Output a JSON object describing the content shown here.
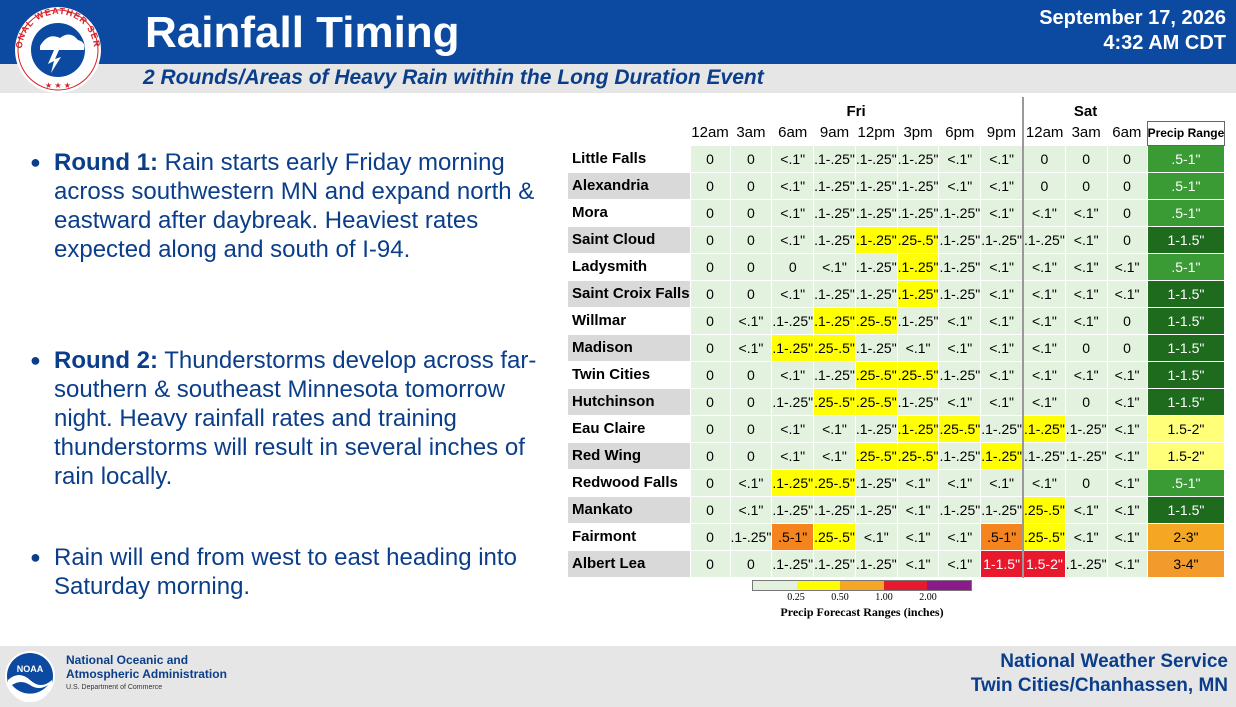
{
  "header": {
    "title": "Rainfall Timing",
    "date": "September 17, 2026",
    "time": "4:32 AM CDT",
    "subtitle": "2 Rounds/Areas of Heavy Rain within the Long Duration Event",
    "logo_text": "NATIONAL WEATHER SERVICE"
  },
  "bullets": [
    {
      "bold": "Round 1:",
      "text": " Rain starts early Friday morning across southwestern MN and expand north & eastward after daybreak. Heaviest rates expected along and south of I-94."
    },
    {
      "bold": "Round 2:",
      "text": " Thunderstorms develop across far-southern & southeast Minnesota tomorrow night. Heavy rainfall rates and training thunderstorms will result in several inches of rain locally."
    },
    {
      "bold": "",
      "text": "Rain will end from west to east heading into Saturday morning."
    }
  ],
  "table": {
    "days": [
      "Fri",
      "Sat"
    ],
    "times": [
      "12am",
      "3am",
      "6am",
      "9am",
      "12pm",
      "3pm",
      "6pm",
      "9pm",
      "12am",
      "3am",
      "6am"
    ],
    "range_header": "Precip Range",
    "rows": [
      {
        "city": "Little Falls",
        "vals": [
          "0",
          "0",
          "<.1\"",
          ".1-.25\"",
          ".1-.25\"",
          ".1-.25\"",
          "<.1\"",
          "<.1\"",
          "0",
          "0",
          "0"
        ],
        "colors": [
          "",
          "",
          "",
          "",
          "",
          "",
          "",
          "",
          "",
          "",
          ""
        ],
        "range": ".5-1\"",
        "rc": "g"
      },
      {
        "city": "Alexandria",
        "vals": [
          "0",
          "0",
          "<.1\"",
          ".1-.25\"",
          ".1-.25\"",
          ".1-.25\"",
          "<.1\"",
          "<.1\"",
          "0",
          "0",
          "0"
        ],
        "colors": [
          "",
          "",
          "",
          "",
          "",
          "",
          "",
          "",
          "",
          "",
          ""
        ],
        "range": ".5-1\"",
        "rc": "g"
      },
      {
        "city": "Mora",
        "vals": [
          "0",
          "0",
          "<.1\"",
          ".1-.25\"",
          ".1-.25\"",
          ".1-.25\"",
          ".1-.25\"",
          "<.1\"",
          "<.1\"",
          "<.1\"",
          "0"
        ],
        "colors": [
          "",
          "",
          "",
          "",
          "",
          "",
          "",
          "",
          "",
          "",
          ""
        ],
        "range": ".5-1\"",
        "rc": "g"
      },
      {
        "city": "Saint Cloud",
        "vals": [
          "0",
          "0",
          "<.1\"",
          ".1-.25\"",
          ".1-.25\"",
          ".25-.5\"",
          ".1-.25\"",
          ".1-.25\"",
          ".1-.25\"",
          "<.1\"",
          "0"
        ],
        "colors": [
          "",
          "",
          "",
          "",
          "y",
          "y",
          "",
          "",
          "",
          "",
          ""
        ],
        "range": "1-1.5\"",
        "rc": "dg"
      },
      {
        "city": "Ladysmith",
        "vals": [
          "0",
          "0",
          "0",
          "<.1\"",
          ".1-.25\"",
          ".1-.25\"",
          ".1-.25\"",
          "<.1\"",
          "<.1\"",
          "<.1\"",
          "<.1\""
        ],
        "colors": [
          "",
          "",
          "",
          "",
          "",
          "y",
          "",
          "",
          "",
          "",
          ""
        ],
        "range": ".5-1\"",
        "rc": "g"
      },
      {
        "city": "Saint Croix Falls",
        "vals": [
          "0",
          "0",
          "<.1\"",
          ".1-.25\"",
          ".1-.25\"",
          ".1-.25\"",
          ".1-.25\"",
          "<.1\"",
          "<.1\"",
          "<.1\"",
          "<.1\""
        ],
        "colors": [
          "",
          "",
          "",
          "",
          "",
          "y",
          "",
          "",
          "",
          "",
          ""
        ],
        "range": "1-1.5\"",
        "rc": "dg"
      },
      {
        "city": "Willmar",
        "vals": [
          "0",
          "<.1\"",
          ".1-.25\"",
          ".1-.25\"",
          ".25-.5\"",
          ".1-.25\"",
          "<.1\"",
          "<.1\"",
          "<.1\"",
          "<.1\"",
          "0"
        ],
        "colors": [
          "",
          "",
          "",
          "y",
          "y",
          "",
          "",
          "",
          "",
          "",
          ""
        ],
        "range": "1-1.5\"",
        "rc": "dg"
      },
      {
        "city": "Madison",
        "vals": [
          "0",
          "<.1\"",
          ".1-.25\"",
          ".25-.5\"",
          ".1-.25\"",
          "<.1\"",
          "<.1\"",
          "<.1\"",
          "<.1\"",
          "0",
          "0"
        ],
        "colors": [
          "",
          "",
          "y",
          "y",
          "",
          "",
          "",
          "",
          "",
          "",
          ""
        ],
        "range": "1-1.5\"",
        "rc": "dg"
      },
      {
        "city": "Twin Cities",
        "vals": [
          "0",
          "0",
          "<.1\"",
          ".1-.25\"",
          ".25-.5\"",
          ".25-.5\"",
          ".1-.25\"",
          "<.1\"",
          "<.1\"",
          "<.1\"",
          "<.1\""
        ],
        "colors": [
          "",
          "",
          "",
          "",
          "y",
          "y",
          "",
          "",
          "",
          "",
          ""
        ],
        "range": "1-1.5\"",
        "rc": "dg"
      },
      {
        "city": "Hutchinson",
        "vals": [
          "0",
          "0",
          ".1-.25\"",
          ".25-.5\"",
          ".25-.5\"",
          ".1-.25\"",
          "<.1\"",
          "<.1\"",
          "<.1\"",
          "0",
          "<.1\""
        ],
        "colors": [
          "",
          "",
          "",
          "y",
          "y",
          "",
          "",
          "",
          "",
          "",
          ""
        ],
        "range": "1-1.5\"",
        "rc": "dg"
      },
      {
        "city": "Eau Claire",
        "vals": [
          "0",
          "0",
          "<.1\"",
          "<.1\"",
          ".1-.25\"",
          ".1-.25\"",
          ".25-.5\"",
          ".1-.25\"",
          ".1-.25\"",
          ".1-.25\"",
          "<.1\""
        ],
        "colors": [
          "",
          "",
          "",
          "",
          "",
          "y",
          "y",
          "",
          "y",
          "",
          ""
        ],
        "range": "1.5-2\"",
        "rc": "ly"
      },
      {
        "city": "Red Wing",
        "vals": [
          "0",
          "0",
          "<.1\"",
          "<.1\"",
          ".25-.5\"",
          ".25-.5\"",
          ".1-.25\"",
          ".1-.25\"",
          ".1-.25\"",
          ".1-.25\"",
          "<.1\""
        ],
        "colors": [
          "",
          "",
          "",
          "",
          "y",
          "y",
          "",
          "y",
          "",
          "",
          ""
        ],
        "range": "1.5-2\"",
        "rc": "ly"
      },
      {
        "city": "Redwood Falls",
        "vals": [
          "0",
          "<.1\"",
          ".1-.25\"",
          ".25-.5\"",
          ".1-.25\"",
          "<.1\"",
          "<.1\"",
          "<.1\"",
          "<.1\"",
          "0",
          "<.1\""
        ],
        "colors": [
          "",
          "",
          "y",
          "y",
          "",
          "",
          "",
          "",
          "",
          "",
          ""
        ],
        "range": ".5-1\"",
        "rc": "g"
      },
      {
        "city": "Mankato",
        "vals": [
          "0",
          "<.1\"",
          ".1-.25\"",
          ".1-.25\"",
          ".1-.25\"",
          "<.1\"",
          ".1-.25\"",
          ".1-.25\"",
          ".25-.5\"",
          "<.1\"",
          "<.1\""
        ],
        "colors": [
          "",
          "",
          "",
          "",
          "",
          "",
          "",
          "",
          "y",
          "",
          ""
        ],
        "range": "1-1.5\"",
        "rc": "dg"
      },
      {
        "city": "Fairmont",
        "vals": [
          "0",
          ".1-.25\"",
          ".5-1\"",
          ".25-.5\"",
          "<.1\"",
          "<.1\"",
          "<.1\"",
          ".5-1\"",
          ".25-.5\"",
          "<.1\"",
          "<.1\""
        ],
        "colors": [
          "",
          "",
          "o",
          "y",
          "",
          "",
          "",
          "o",
          "y",
          "",
          ""
        ],
        "range": "2-3\"",
        "rc": "o"
      },
      {
        "city": "Albert Lea",
        "vals": [
          "0",
          "0",
          ".1-.25\"",
          ".1-.25\"",
          ".1-.25\"",
          "<.1\"",
          "<.1\"",
          "1-1.5\"",
          "1.5-2\"",
          ".1-.25\"",
          "<.1\""
        ],
        "colors": [
          "",
          "",
          "",
          "",
          "",
          "",
          "",
          "r",
          "r",
          "",
          ""
        ],
        "range": "3-4\"",
        "rc": "lo"
      }
    ]
  },
  "legend": {
    "colors": [
      "#e3f1df",
      "#ffff00",
      "#f5a623",
      "#e8192c",
      "#8b1a8b"
    ],
    "ticks": [
      "0.25",
      "0.50",
      "1.00",
      "2.00"
    ],
    "label": "Precip Forecast Ranges (inches)"
  },
  "footer": {
    "noaa_line1": "National Oceanic and",
    "noaa_line2": "Atmospheric Administration",
    "noaa_sub": "U.S. Department of Commerce",
    "noaa_logo_text": "NOAA",
    "office_line1": "National Weather Service",
    "office_line2": "Twin Cities/Chanhassen, MN"
  }
}
